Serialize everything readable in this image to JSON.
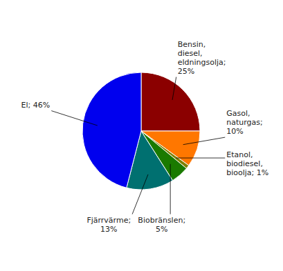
{
  "chart_data": {
    "type": "pie",
    "categories": [
      "Bensin,\ndiesel,\neldningsolja;\n25%",
      "Gasol,\nnaturgas;\n10%",
      "Etanol,\nbiodiesel,\nbioolja; 1%",
      "Biobränslen;\n5%",
      "Fjärrvärme;\n13%",
      "El; 46%"
    ],
    "values": [
      25,
      10,
      1,
      5,
      13,
      46
    ],
    "colors": [
      "#8B0000",
      "#FF7700",
      "#808000",
      "#1A7A00",
      "#007070",
      "#0000EE"
    ]
  }
}
